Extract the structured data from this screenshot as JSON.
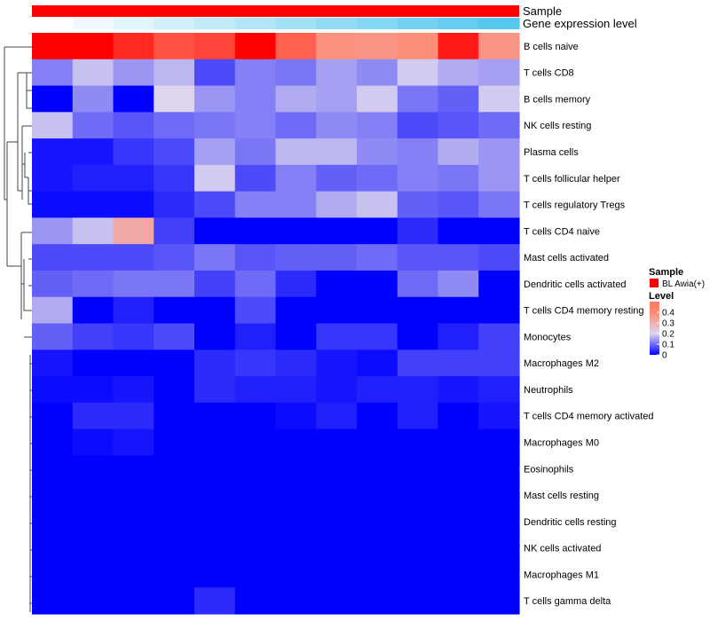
{
  "chart_data": {
    "type": "heatmap",
    "annotations": {
      "sample_label": "Sample",
      "gene_expression_label": "Gene expression level",
      "sample_color": "#ff0000",
      "gene_expression_gradient": [
        "#ffffff",
        "#56c8f0"
      ]
    },
    "rows": [
      "B cells naive",
      "T cells CD8",
      "B cells memory",
      "NK cells resting",
      "Plasma cells",
      "T cells follicular helper",
      "T cells regulatory  Tregs",
      "T cells CD4 naive",
      "Mast cells activated",
      "Dendritic cells activated",
      "T cells CD4 memory resting",
      "Monocytes",
      "Macrophages M2",
      "Neutrophils",
      "T cells CD4 memory activated",
      "Macrophages M0",
      "Eosinophils",
      "Mast cells resting",
      "Dendritic cells resting",
      "NK cells activated",
      "Macrophages M1",
      "T cells gamma delta"
    ],
    "values": [
      [
        0.5,
        0.5,
        0.47,
        0.44,
        0.45,
        0.5,
        0.43,
        0.38,
        0.37,
        0.39,
        0.48,
        0.37
      ],
      [
        0.12,
        0.18,
        0.14,
        0.17,
        0.07,
        0.12,
        0.11,
        0.15,
        0.13,
        0.19,
        0.16,
        0.15
      ],
      [
        0.0,
        0.13,
        0.0,
        0.2,
        0.14,
        0.12,
        0.16,
        0.15,
        0.19,
        0.11,
        0.09,
        0.19
      ],
      [
        0.18,
        0.1,
        0.08,
        0.1,
        0.11,
        0.12,
        0.1,
        0.13,
        0.12,
        0.07,
        0.08,
        0.1
      ],
      [
        0.02,
        0.02,
        0.05,
        0.07,
        0.15,
        0.11,
        0.17,
        0.17,
        0.13,
        0.12,
        0.16,
        0.14
      ],
      [
        0.02,
        0.03,
        0.03,
        0.05,
        0.19,
        0.07,
        0.12,
        0.09,
        0.1,
        0.12,
        0.11,
        0.14
      ],
      [
        0.01,
        0.01,
        0.01,
        0.04,
        0.07,
        0.12,
        0.12,
        0.16,
        0.18,
        0.09,
        0.08,
        0.11
      ],
      [
        0.14,
        0.18,
        0.32,
        0.06,
        0.0,
        0.0,
        0.0,
        0.0,
        0.0,
        0.04,
        0.0,
        0.0
      ],
      [
        0.07,
        0.07,
        0.07,
        0.08,
        0.11,
        0.08,
        0.09,
        0.09,
        0.1,
        0.08,
        0.08,
        0.07
      ],
      [
        0.09,
        0.1,
        0.11,
        0.11,
        0.06,
        0.1,
        0.04,
        0.0,
        0.0,
        0.1,
        0.13,
        0.0
      ],
      [
        0.16,
        0.0,
        0.03,
        0.0,
        0.0,
        0.07,
        0.0,
        0.0,
        0.0,
        0.0,
        0.0,
        0.0
      ],
      [
        0.09,
        0.06,
        0.05,
        0.07,
        0.0,
        0.03,
        0.0,
        0.05,
        0.05,
        0.0,
        0.03,
        0.06
      ],
      [
        0.02,
        0.0,
        0.0,
        0.0,
        0.04,
        0.05,
        0.04,
        0.02,
        0.01,
        0.06,
        0.06,
        0.06
      ],
      [
        0.01,
        0.01,
        0.02,
        0.0,
        0.04,
        0.03,
        0.03,
        0.02,
        0.03,
        0.03,
        0.02,
        0.03
      ],
      [
        0.0,
        0.04,
        0.04,
        0.0,
        0.0,
        0.0,
        0.01,
        0.03,
        0.0,
        0.03,
        0.0,
        0.02
      ],
      [
        0.0,
        0.01,
        0.02,
        0.0,
        0.0,
        0.0,
        0.0,
        0.0,
        0.0,
        0.0,
        0.0,
        0.0
      ],
      [
        0.0,
        0.0,
        0.0,
        0.0,
        0.0,
        0.0,
        0.0,
        0.0,
        0.0,
        0.0,
        0.0,
        0.0
      ],
      [
        0.0,
        0.0,
        0.0,
        0.0,
        0.0,
        0.0,
        0.0,
        0.0,
        0.0,
        0.0,
        0.0,
        0.0
      ],
      [
        0.0,
        0.0,
        0.0,
        0.0,
        0.0,
        0.0,
        0.0,
        0.0,
        0.0,
        0.0,
        0.0,
        0.0
      ],
      [
        0.0,
        0.0,
        0.0,
        0.0,
        0.0,
        0.0,
        0.0,
        0.0,
        0.0,
        0.0,
        0.0,
        0.0
      ],
      [
        0.0,
        0.0,
        0.0,
        0.0,
        0.0,
        0.0,
        0.0,
        0.0,
        0.0,
        0.0,
        0.0,
        0.0
      ],
      [
        0.0,
        0.0,
        0.0,
        0.0,
        0.04,
        0.0,
        0.0,
        0.0,
        0.0,
        0.0,
        0.0,
        0.0
      ]
    ],
    "color_scale": {
      "stops": [
        {
          "value": 0.0,
          "color": "#0000ff"
        },
        {
          "value": 0.2,
          "color": "#ddd6ee"
        },
        {
          "value": 0.4,
          "color": "#ff8a72"
        },
        {
          "value": 0.5,
          "color": "#ff0000"
        }
      ]
    },
    "legend": {
      "sample_title": "Sample",
      "sample_item": "BL Awia(+)",
      "sample_color": "#ff0000",
      "level_title": "Level",
      "level_ticks": [
        "0.4",
        "0.3",
        "0.2",
        "0.1",
        "0"
      ],
      "level_tick_values": [
        0.4,
        0.3,
        0.2,
        0.1,
        0.0
      ],
      "placement": "right"
    },
    "dendrogram": "left"
  }
}
